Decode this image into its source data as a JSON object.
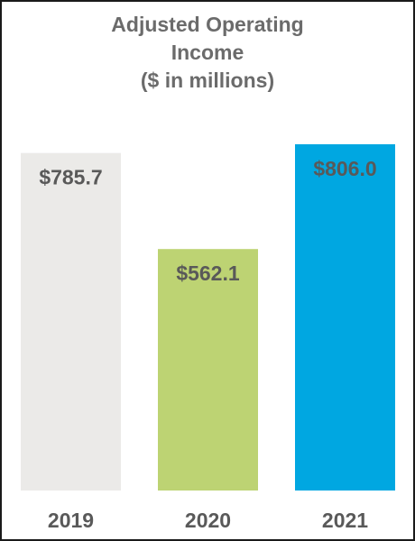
{
  "chart_data": {
    "type": "bar",
    "title_lines": [
      "Adjusted Operating",
      "Income",
      "($ in millions)"
    ],
    "categories": [
      "2019",
      "2020",
      "2021"
    ],
    "values": [
      785.7,
      562.1,
      806.0
    ],
    "value_labels": [
      "$785.7",
      "$562.1",
      "$806.0"
    ],
    "colors": [
      "#ebeae8",
      "#bdd373",
      "#00a7e1"
    ],
    "xlabel": "",
    "ylabel": "",
    "ylim": [
      0,
      806.0
    ],
    "grid": false,
    "legend": "none"
  }
}
